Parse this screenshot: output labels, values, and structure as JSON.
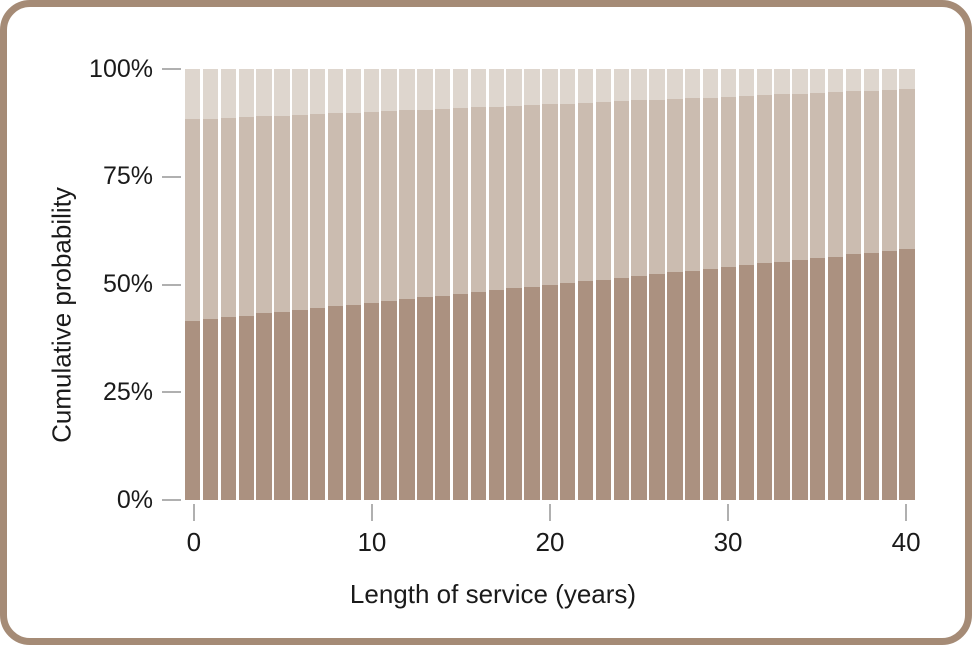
{
  "figure": {
    "x_axis_title": "Length of service (years)",
    "y_axis_title": "Cumulative probability"
  },
  "colors": {
    "card_border": "#a58b76",
    "tick": "#b0b0b0",
    "text": "#1a1a1a",
    "background": "#ffffff",
    "segment_bottom": "#ab9180",
    "segment_middle": "#cbbcb0",
    "segment_top": "#ded6ce"
  },
  "chart_data": {
    "type": "bar",
    "stacked": true,
    "title": "",
    "xlabel": "Length of service (years)",
    "ylabel": "Cumulative probability",
    "x": [
      0,
      1,
      2,
      3,
      4,
      5,
      6,
      7,
      8,
      9,
      10,
      11,
      12,
      13,
      14,
      15,
      16,
      17,
      18,
      19,
      20,
      21,
      22,
      23,
      24,
      25,
      26,
      27,
      28,
      29,
      30,
      31,
      32,
      33,
      34,
      35,
      36,
      37,
      38,
      39,
      40
    ],
    "series": [
      {
        "name": "bottom-segment",
        "color": "#ab9180",
        "values": [
          41.6,
          42.0,
          42.4,
          42.8,
          43.3,
          43.7,
          44.1,
          44.5,
          44.9,
          45.3,
          45.8,
          46.2,
          46.6,
          47.0,
          47.4,
          47.8,
          48.2,
          48.7,
          49.1,
          49.5,
          49.9,
          50.3,
          50.7,
          51.1,
          51.6,
          52.0,
          52.4,
          52.8,
          53.2,
          53.6,
          54.1,
          54.5,
          54.9,
          55.3,
          55.7,
          56.1,
          56.5,
          57.0,
          57.4,
          57.8,
          58.2
        ]
      },
      {
        "name": "middle-segment",
        "color": "#cbbcb0",
        "values": [
          46.7,
          46.5,
          46.2,
          46.0,
          45.7,
          45.5,
          45.3,
          45.0,
          44.8,
          44.5,
          44.3,
          44.1,
          43.8,
          43.6,
          43.3,
          43.1,
          42.9,
          42.6,
          42.4,
          42.1,
          41.9,
          41.7,
          41.4,
          41.2,
          40.9,
          40.7,
          40.5,
          40.2,
          40.0,
          39.7,
          39.5,
          39.3,
          39.0,
          38.8,
          38.5,
          38.3,
          38.1,
          37.8,
          37.6,
          37.3,
          37.1
        ]
      },
      {
        "name": "top-segment",
        "color": "#ded6ce",
        "values": [
          11.7,
          11.5,
          11.4,
          11.2,
          11.0,
          10.8,
          10.7,
          10.5,
          10.3,
          10.1,
          10.0,
          9.8,
          9.6,
          9.4,
          9.3,
          9.1,
          8.9,
          8.7,
          8.6,
          8.4,
          8.2,
          8.0,
          7.9,
          7.7,
          7.5,
          7.3,
          7.2,
          7.0,
          6.8,
          6.6,
          6.5,
          6.3,
          6.1,
          5.9,
          5.8,
          5.6,
          5.4,
          5.2,
          5.1,
          4.9,
          4.7
        ]
      }
    ],
    "ylim": [
      0,
      100
    ],
    "y_ticks": [
      0,
      25,
      50,
      75,
      100
    ],
    "y_tick_labels": [
      "0%",
      "25%",
      "50%",
      "75%",
      "100%"
    ],
    "x_ticks": [
      0,
      10,
      20,
      30,
      40
    ],
    "x_tick_labels": [
      "0",
      "10",
      "20",
      "30",
      "40"
    ],
    "grid": false,
    "legend": "none"
  }
}
